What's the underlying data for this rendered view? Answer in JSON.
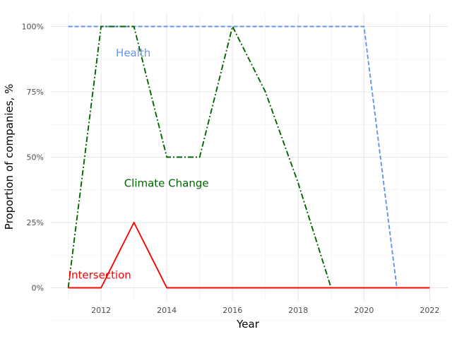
{
  "chart_data": {
    "type": "line",
    "title": "",
    "xlabel": "Year",
    "ylabel": "Proportion of companies, %",
    "x": [
      2011,
      2012,
      2013,
      2014,
      2015,
      2016,
      2017,
      2018,
      2019,
      2020,
      2021,
      2022
    ],
    "xlim": [
      2010.45,
      2022.55
    ],
    "ylim": [
      -0.05,
      1.05
    ],
    "x_ticks": [
      2012,
      2014,
      2016,
      2018,
      2020,
      2022
    ],
    "x_tick_labels": [
      "2012",
      "2014",
      "2016",
      "2018",
      "2020",
      "2022"
    ],
    "y_ticks": [
      0,
      0.25,
      0.5,
      0.75,
      1.0
    ],
    "y_tick_labels": [
      "0%",
      "25%",
      "50%",
      "75%",
      "100%"
    ],
    "grid": true,
    "legend": "none (inline labels)",
    "series": [
      {
        "name": "Health",
        "color": "#6495ED",
        "dash": "dashed",
        "values": [
          1,
          1,
          1,
          1,
          1,
          1,
          1,
          1,
          1,
          1,
          0,
          0
        ],
        "label_anchor": {
          "x": 2012.45,
          "y": 0.898
        }
      },
      {
        "name": "Climate Change",
        "color": "#006400",
        "dash": "dashdot",
        "values": [
          0,
          1,
          1,
          0.5,
          0.5,
          1,
          0.75,
          0.4,
          0,
          0,
          0,
          0
        ],
        "label_anchor": {
          "x": 2012.7,
          "y": 0.4
        }
      },
      {
        "name": "Intersection",
        "color": "#FF0000",
        "dash": "solid",
        "values": [
          0,
          0,
          0.25,
          0,
          0,
          0,
          0,
          0,
          0,
          0,
          0,
          0
        ],
        "label_anchor": {
          "x": 2011.0,
          "y": 0.048
        }
      }
    ]
  }
}
